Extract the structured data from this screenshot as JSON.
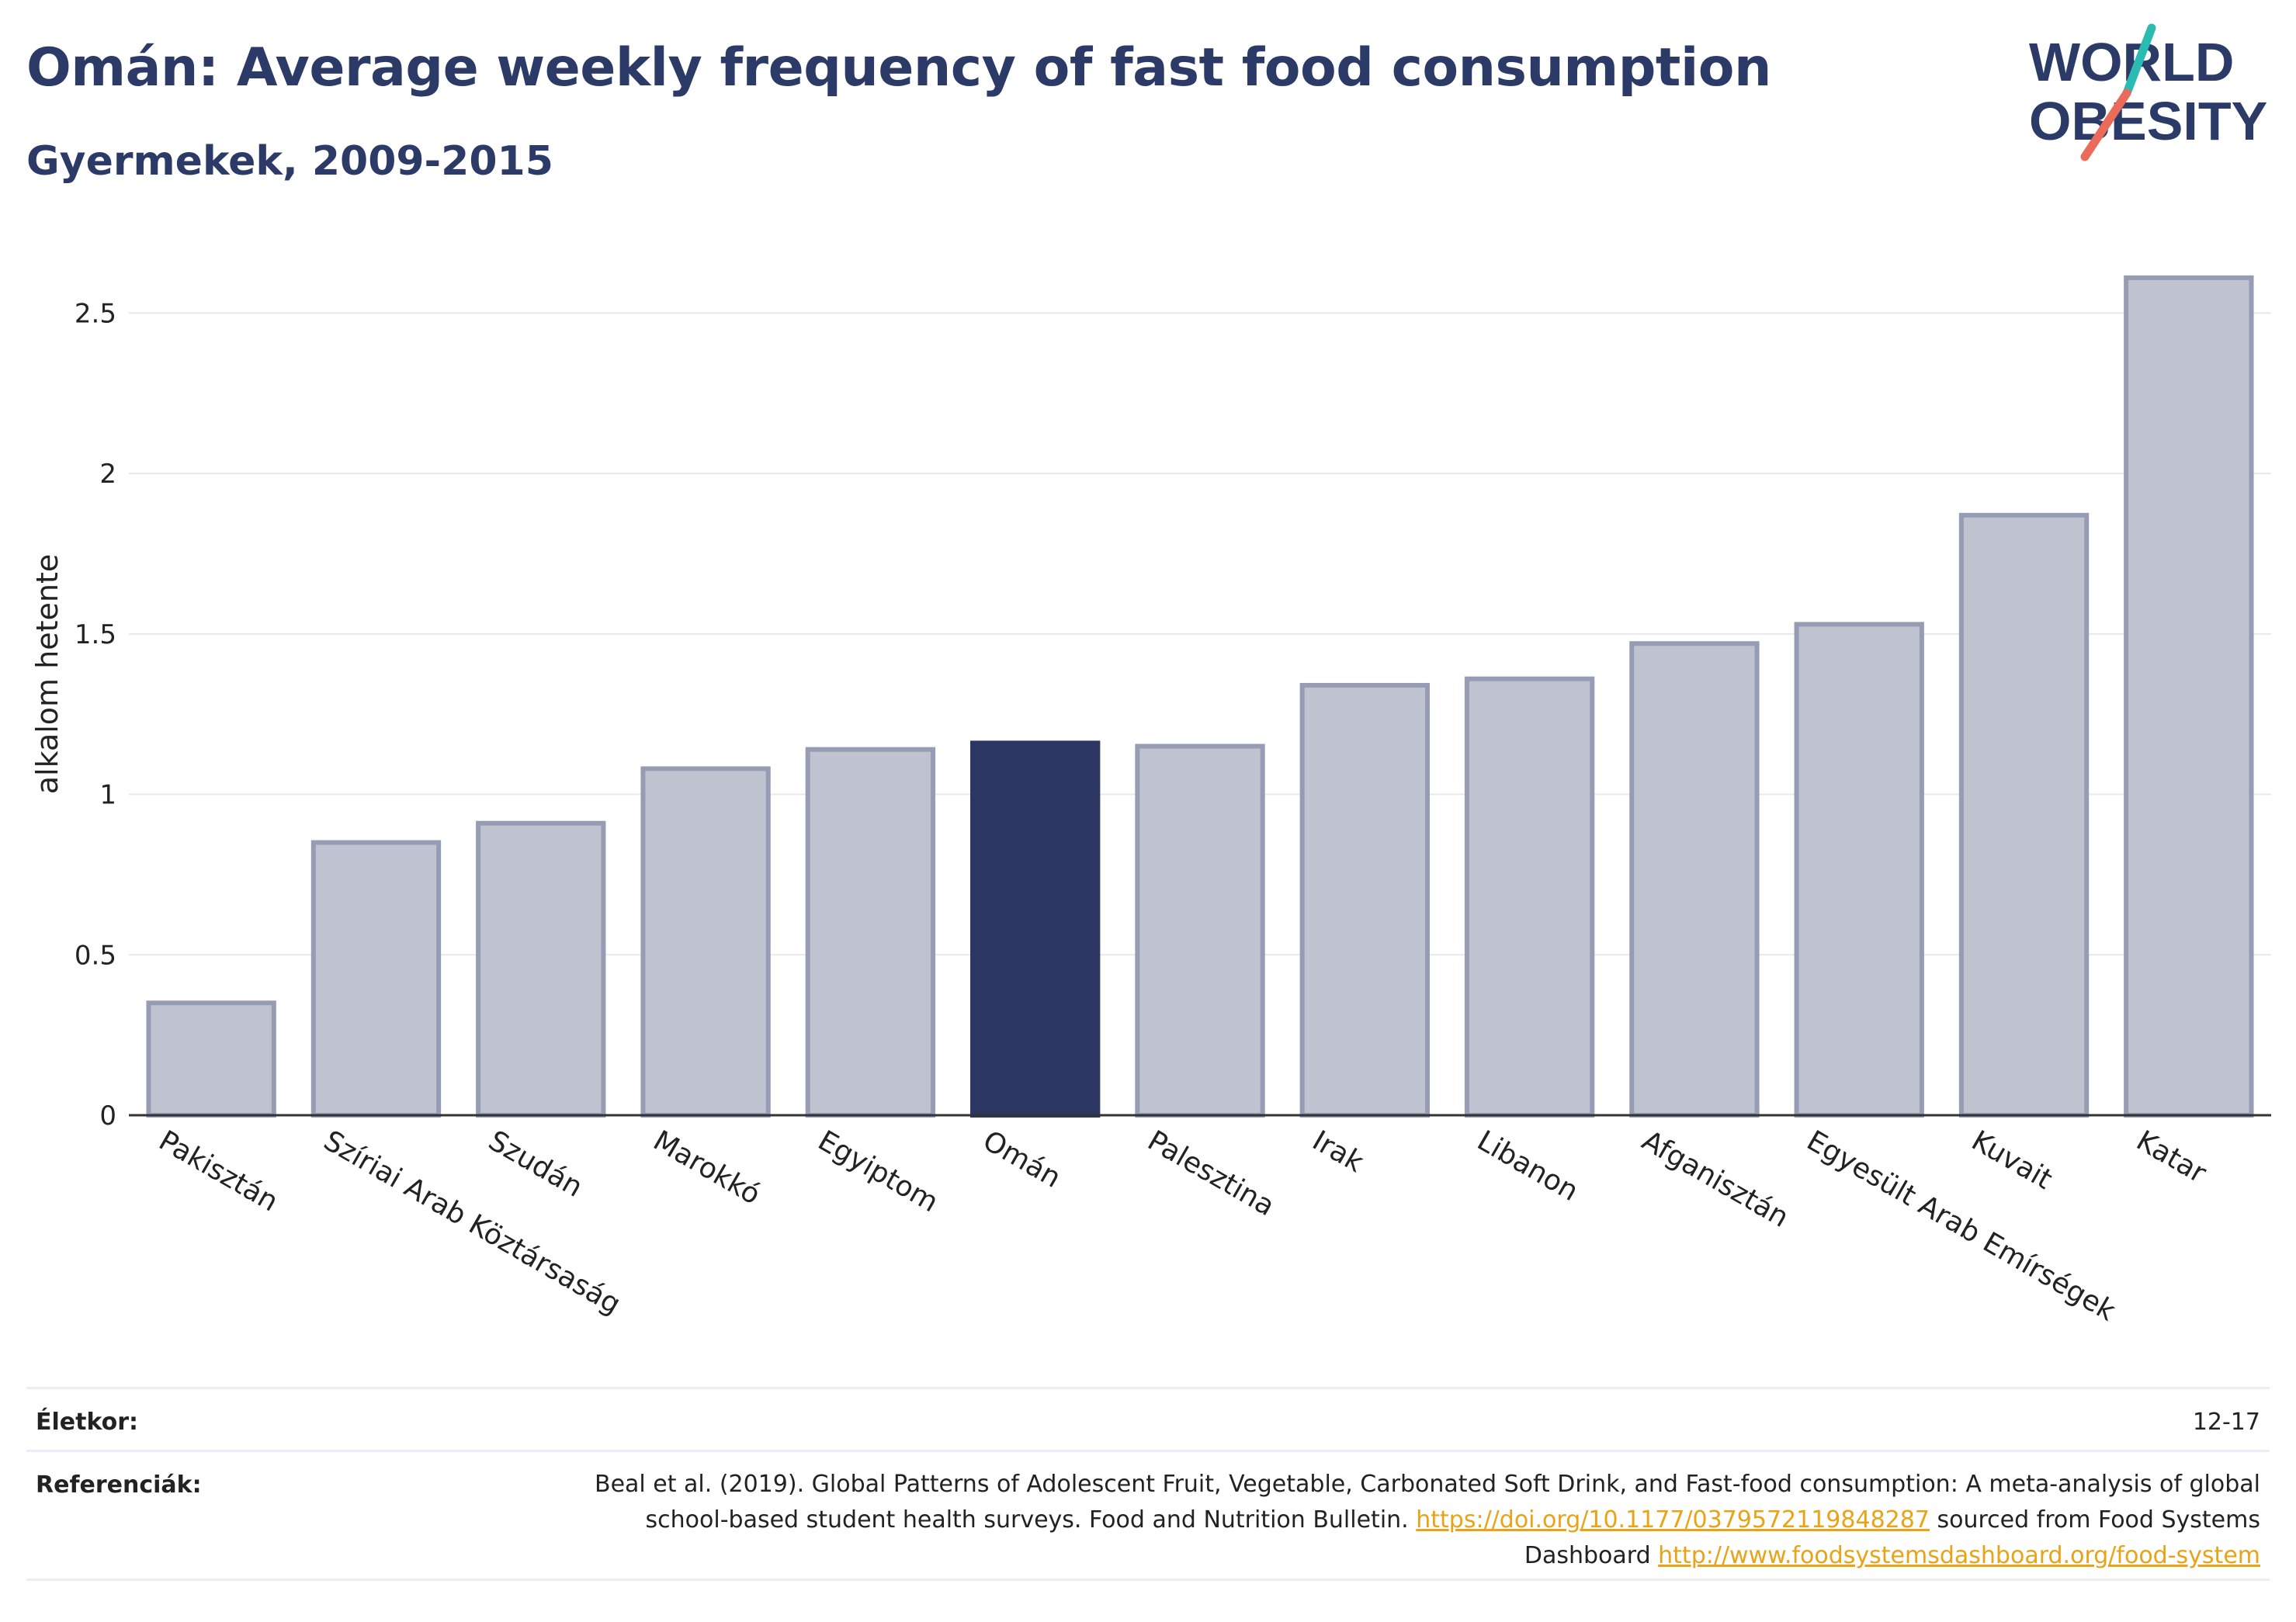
{
  "header": {
    "title": "Omán: Average weekly frequency of fast food consumption",
    "subtitle": "Gyermekek, 2009-2015"
  },
  "logo": {
    "line1": "WORLD",
    "line2": "OBESITY"
  },
  "chart_data": {
    "type": "bar",
    "title": "Omán: Average weekly frequency of fast food consumption",
    "subtitle": "Gyermekek, 2009-2015",
    "ylabel": "alkalom hetente",
    "xlabel": "",
    "ylim": [
      0,
      2.75
    ],
    "yticks": [
      0,
      0.5,
      1,
      1.5,
      2,
      2.5
    ],
    "ytick_labels": [
      "0",
      "0.5",
      "1",
      "1.5",
      "2",
      "2.5"
    ],
    "grid": true,
    "highlight": "Omán",
    "colors": {
      "bar": "#bfc3d0",
      "bar_border": "#959cb3",
      "highlight": "#2b3662"
    },
    "categories": [
      "Pakisztán",
      "Szíriai Arab Köztársaság",
      "Szudán",
      "Marokkó",
      "Egyiptom",
      "Omán",
      "Palesztina",
      "Irak",
      "Libanon",
      "Afganisztán",
      "Egyesült Arab Emírségek",
      "Kuvait",
      "Katar"
    ],
    "values": [
      0.35,
      0.85,
      0.91,
      1.08,
      1.14,
      1.16,
      1.15,
      1.34,
      1.36,
      1.47,
      1.53,
      1.87,
      2.61
    ]
  },
  "footer": {
    "age_label": "Életkor:",
    "age_value": "12-17",
    "refs_label": "Referenciák:",
    "refs_text_1": "Beal et al. (2019). Global Patterns of Adolescent Fruit, Vegetable, Carbonated Soft Drink, and Fast-food consumption: A meta-analysis of global school-based student health surveys. Food and Nutrition Bulletin. ",
    "refs_link_1": "https://doi.org/10.1177/0379572119848287",
    "refs_text_2": " sourced from Food Systems Dashboard ",
    "refs_link_2": "http://www.foodsystemsdashboard.org/food-system"
  }
}
